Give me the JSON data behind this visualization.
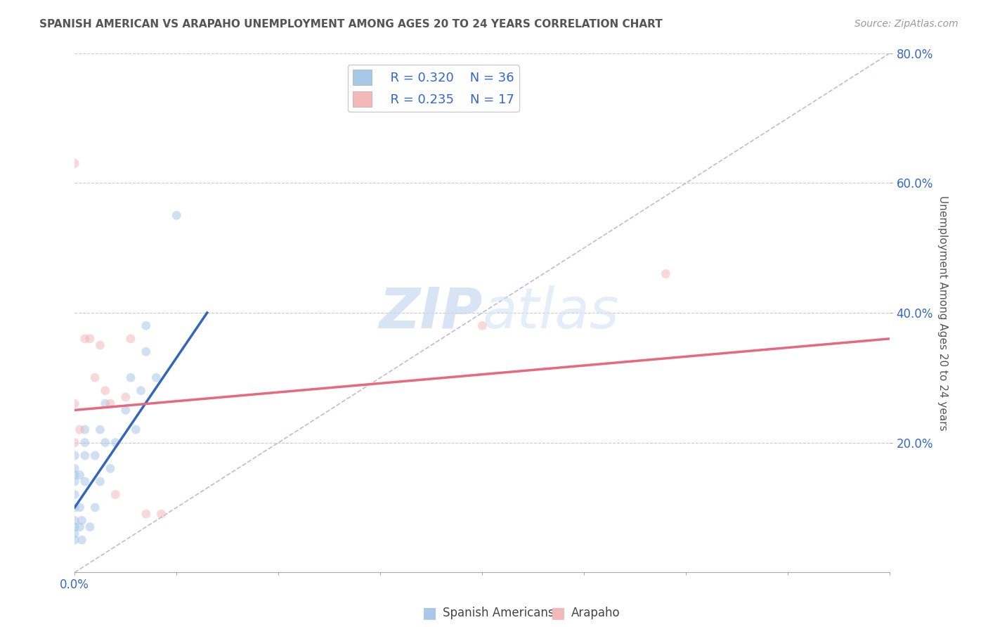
{
  "title": "SPANISH AMERICAN VS ARAPAHO UNEMPLOYMENT AMONG AGES 20 TO 24 YEARS CORRELATION CHART",
  "source": "Source: ZipAtlas.com",
  "ylabel": "Unemployment Among Ages 20 to 24 years",
  "xlim": [
    0.0,
    0.8
  ],
  "ylim": [
    0.0,
    0.8
  ],
  "xticks": [
    0.0,
    0.1,
    0.2,
    0.3,
    0.4,
    0.5,
    0.6,
    0.7,
    0.8
  ],
  "xticklabels_visible": {
    "0.0": "0.0%",
    "0.80": "80.0%"
  },
  "yticks": [
    0.2,
    0.4,
    0.6,
    0.8
  ],
  "yticklabels": [
    "20.0%",
    "40.0%",
    "60.0%",
    "80.0%"
  ],
  "legend_r": [
    "R = 0.320",
    "R = 0.235"
  ],
  "legend_n": [
    "N = 36",
    "N = 17"
  ],
  "series1_color": "#a8c8e8",
  "series2_color": "#f4b8b8",
  "line1_color": "#3366bb",
  "line2_color": "#e86880",
  "diagonal_color": "#bbbbdd",
  "background_color": "#ffffff",
  "grid_color": "#cccccc",
  "title_color": "#555555",
  "tick_color": "#3366cc",
  "legend_text_color": "#3366cc",
  "spanish_x": [
    0.0,
    0.0,
    0.0,
    0.0,
    0.0,
    0.0,
    0.0,
    0.0,
    0.0,
    0.0,
    0.005,
    0.005,
    0.005,
    0.007,
    0.007,
    0.01,
    0.01,
    0.01,
    0.01,
    0.015,
    0.02,
    0.02,
    0.025,
    0.025,
    0.03,
    0.03,
    0.035,
    0.04,
    0.05,
    0.055,
    0.06,
    0.065,
    0.07,
    0.07,
    0.08,
    0.1
  ],
  "spanish_y": [
    0.05,
    0.06,
    0.07,
    0.08,
    0.1,
    0.12,
    0.14,
    0.15,
    0.16,
    0.18,
    0.07,
    0.1,
    0.15,
    0.05,
    0.08,
    0.14,
    0.18,
    0.2,
    0.22,
    0.07,
    0.1,
    0.18,
    0.14,
    0.22,
    0.2,
    0.26,
    0.16,
    0.2,
    0.25,
    0.3,
    0.22,
    0.28,
    0.34,
    0.38,
    0.3,
    0.55
  ],
  "arapaho_x": [
    0.0,
    0.0,
    0.0,
    0.005,
    0.01,
    0.015,
    0.02,
    0.025,
    0.03,
    0.035,
    0.04,
    0.05,
    0.055,
    0.07,
    0.085,
    0.4,
    0.58
  ],
  "arapaho_y": [
    0.63,
    0.26,
    0.2,
    0.22,
    0.36,
    0.36,
    0.3,
    0.35,
    0.28,
    0.26,
    0.12,
    0.27,
    0.36,
    0.09,
    0.09,
    0.38,
    0.46
  ],
  "line1_x": [
    0.0,
    0.13
  ],
  "line1_y": [
    0.1,
    0.4
  ],
  "line2_x": [
    0.0,
    0.8
  ],
  "line2_y": [
    0.25,
    0.36
  ],
  "watermark_zip": "ZIP",
  "watermark_atlas": "atlas",
  "marker_size": 85,
  "alpha": 0.55
}
